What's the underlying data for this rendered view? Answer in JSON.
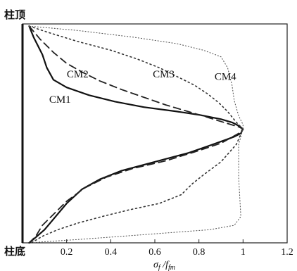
{
  "chart_data": {
    "type": "line",
    "title": "",
    "xlabel": "σf / ffm",
    "xlabel_parts": {
      "main": "σ",
      "main_sub": "f",
      "sep": " /",
      "denom": "f",
      "denom_sub": "fm"
    },
    "ylabel": "",
    "xlim": [
      0,
      1.2
    ],
    "ylim": [
      0,
      1
    ],
    "x_ticks": [
      0.2,
      0.4,
      0.6,
      0.8,
      1,
      1.2
    ],
    "x_tick_labels": [
      "0.2",
      "0.4",
      "0.6",
      "0.8",
      "1",
      "1.2"
    ],
    "y_end_labels": {
      "top": "柱顶",
      "bottom": "柱底"
    },
    "grid": false,
    "legend": "inline labels on curves",
    "series": [
      {
        "name": "CM1",
        "style": "solid",
        "x": [
          0.03,
          0.05,
          0.09,
          0.11,
          0.14,
          0.2,
          0.3,
          0.42,
          0.55,
          0.7,
          0.8,
          0.9,
          0.95,
          0.98,
          1.0,
          0.99,
          0.96,
          0.92,
          0.85,
          0.75,
          0.6,
          0.45,
          0.35,
          0.27,
          0.2,
          0.15,
          0.1,
          0.06,
          0.03
        ],
        "y": [
          0.99,
          0.94,
          0.86,
          0.8,
          0.745,
          0.71,
          0.675,
          0.645,
          0.62,
          0.6,
          0.585,
          0.565,
          0.55,
          0.535,
          0.52,
          0.5,
          0.485,
          0.47,
          0.445,
          0.41,
          0.37,
          0.33,
          0.29,
          0.245,
          0.18,
          0.12,
          0.06,
          0.025,
          0.0
        ],
        "label_pos": [
          0.17,
          0.64
        ]
      },
      {
        "name": "CM2",
        "style": "dashed",
        "x": [
          0.03,
          0.08,
          0.14,
          0.2,
          0.27,
          0.35,
          0.45,
          0.55,
          0.65,
          0.75,
          0.85,
          0.93,
          0.98,
          1.0,
          0.98,
          0.9,
          0.78,
          0.65,
          0.5,
          0.38,
          0.28,
          0.2,
          0.14,
          0.09,
          0.06,
          0.03
        ],
        "y": [
          0.99,
          0.93,
          0.87,
          0.82,
          0.78,
          0.74,
          0.7,
          0.665,
          0.63,
          0.6,
          0.57,
          0.545,
          0.53,
          0.52,
          0.5,
          0.455,
          0.415,
          0.375,
          0.34,
          0.3,
          0.25,
          0.19,
          0.13,
          0.08,
          0.03,
          0.0
        ],
        "label_pos": [
          0.25,
          0.755
        ]
      },
      {
        "name": "CM3",
        "style": "dotted",
        "x": [
          0.03,
          0.12,
          0.25,
          0.4,
          0.52,
          0.62,
          0.7,
          0.78,
          0.84,
          0.89,
          0.93,
          0.97,
          0.99,
          1.0,
          0.97,
          0.9,
          0.82,
          0.77,
          0.72,
          0.62,
          0.48,
          0.36,
          0.25,
          0.16,
          0.09,
          0.04
        ],
        "y": [
          0.99,
          0.96,
          0.92,
          0.88,
          0.84,
          0.8,
          0.76,
          0.72,
          0.68,
          0.64,
          0.6,
          0.55,
          0.53,
          0.52,
          0.45,
          0.37,
          0.31,
          0.27,
          0.22,
          0.18,
          0.15,
          0.12,
          0.09,
          0.06,
          0.03,
          0.0
        ],
        "label_pos": [
          0.64,
          0.755
        ]
      },
      {
        "name": "CM4",
        "style": "fine-dotted",
        "x": [
          0.03,
          0.25,
          0.5,
          0.7,
          0.82,
          0.9,
          0.93,
          0.95,
          0.96,
          0.98,
          1.0,
          1.0,
          0.98,
          0.98,
          0.99,
          0.96,
          0.85,
          0.65,
          0.45,
          0.25,
          0.1,
          0.04
        ],
        "y": [
          0.99,
          0.97,
          0.94,
          0.91,
          0.88,
          0.85,
          0.8,
          0.72,
          0.65,
          0.58,
          0.54,
          0.52,
          0.45,
          0.3,
          0.12,
          0.08,
          0.06,
          0.045,
          0.03,
          0.015,
          0.005,
          0.0
        ],
        "label_pos": [
          0.92,
          0.745
        ]
      }
    ]
  }
}
